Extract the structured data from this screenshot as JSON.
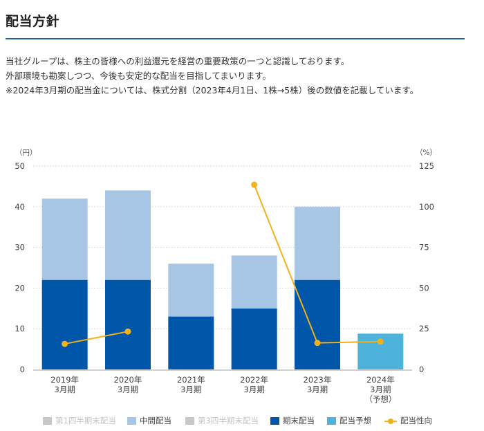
{
  "header": {
    "title": "配当方針"
  },
  "intro": {
    "lines": [
      "当社グループは、株主の皆様への利益還元を経営の重要政策の一つと認識しております。",
      "外部環境も勘案しつつ、今後も安定的な配当を目指してまいります。",
      "※2024年3月期の配当金については、株式分割（2023年4月1日、1株→5株）後の数値を記載しています。"
    ]
  },
  "colors": {
    "interim": "#a7c5e4",
    "year_end": "#0056a9",
    "forecast": "#4eb3db",
    "payout_line": "#f2b11a",
    "q_inactive": "#c8c8c8",
    "title_rule": "#1f5fa8"
  },
  "chart_data": {
    "type": "bar",
    "stacked": true,
    "title": "配当方針",
    "categories": [
      [
        "2019年",
        "3月期"
      ],
      [
        "2020年",
        "3月期"
      ],
      [
        "2021年",
        "3月期"
      ],
      [
        "2022年",
        "3月期"
      ],
      [
        "2023年",
        "3月期"
      ],
      [
        "2024年",
        "3月期",
        "（予想）"
      ]
    ],
    "y_left": {
      "unit_label": "（円）",
      "ylim": [
        0,
        50
      ],
      "ticks": [
        "0",
        "10",
        "20",
        "30",
        "40",
        "50"
      ]
    },
    "y_right": {
      "unit_label": "（%）",
      "ylim": [
        0,
        125
      ],
      "ticks": [
        "0",
        "25",
        "50",
        "75",
        "100",
        "125"
      ]
    },
    "grid": true,
    "series": [
      {
        "name": "第1四半期末配当",
        "type": "bar",
        "axis": "left",
        "values": [
          0,
          0,
          0,
          0,
          0,
          0
        ],
        "color": "#c8c8c8",
        "legend_inactive": true
      },
      {
        "name": "中間配当",
        "type": "bar",
        "axis": "left",
        "values": [
          20,
          22,
          13,
          13,
          18,
          0
        ],
        "color": "#a7c5e4"
      },
      {
        "name": "第3四半期末配当",
        "type": "bar",
        "axis": "left",
        "values": [
          0,
          0,
          0,
          0,
          0,
          0
        ],
        "color": "#c8c8c8",
        "legend_inactive": true
      },
      {
        "name": "期末配当",
        "type": "bar",
        "axis": "left",
        "values": [
          22,
          22,
          13,
          15,
          22,
          0
        ],
        "color": "#0056a9"
      },
      {
        "name": "配当予想",
        "type": "bar",
        "axis": "left",
        "values": [
          0,
          0,
          0,
          0,
          0,
          8.8
        ],
        "color": "#4eb3db"
      },
      {
        "name": "配当性向",
        "type": "line",
        "axis": "right",
        "values": [
          15.7,
          23.3,
          null,
          113.5,
          16.3,
          17.1
        ],
        "color": "#f2b11a"
      }
    ],
    "legend_position": "bottom"
  }
}
